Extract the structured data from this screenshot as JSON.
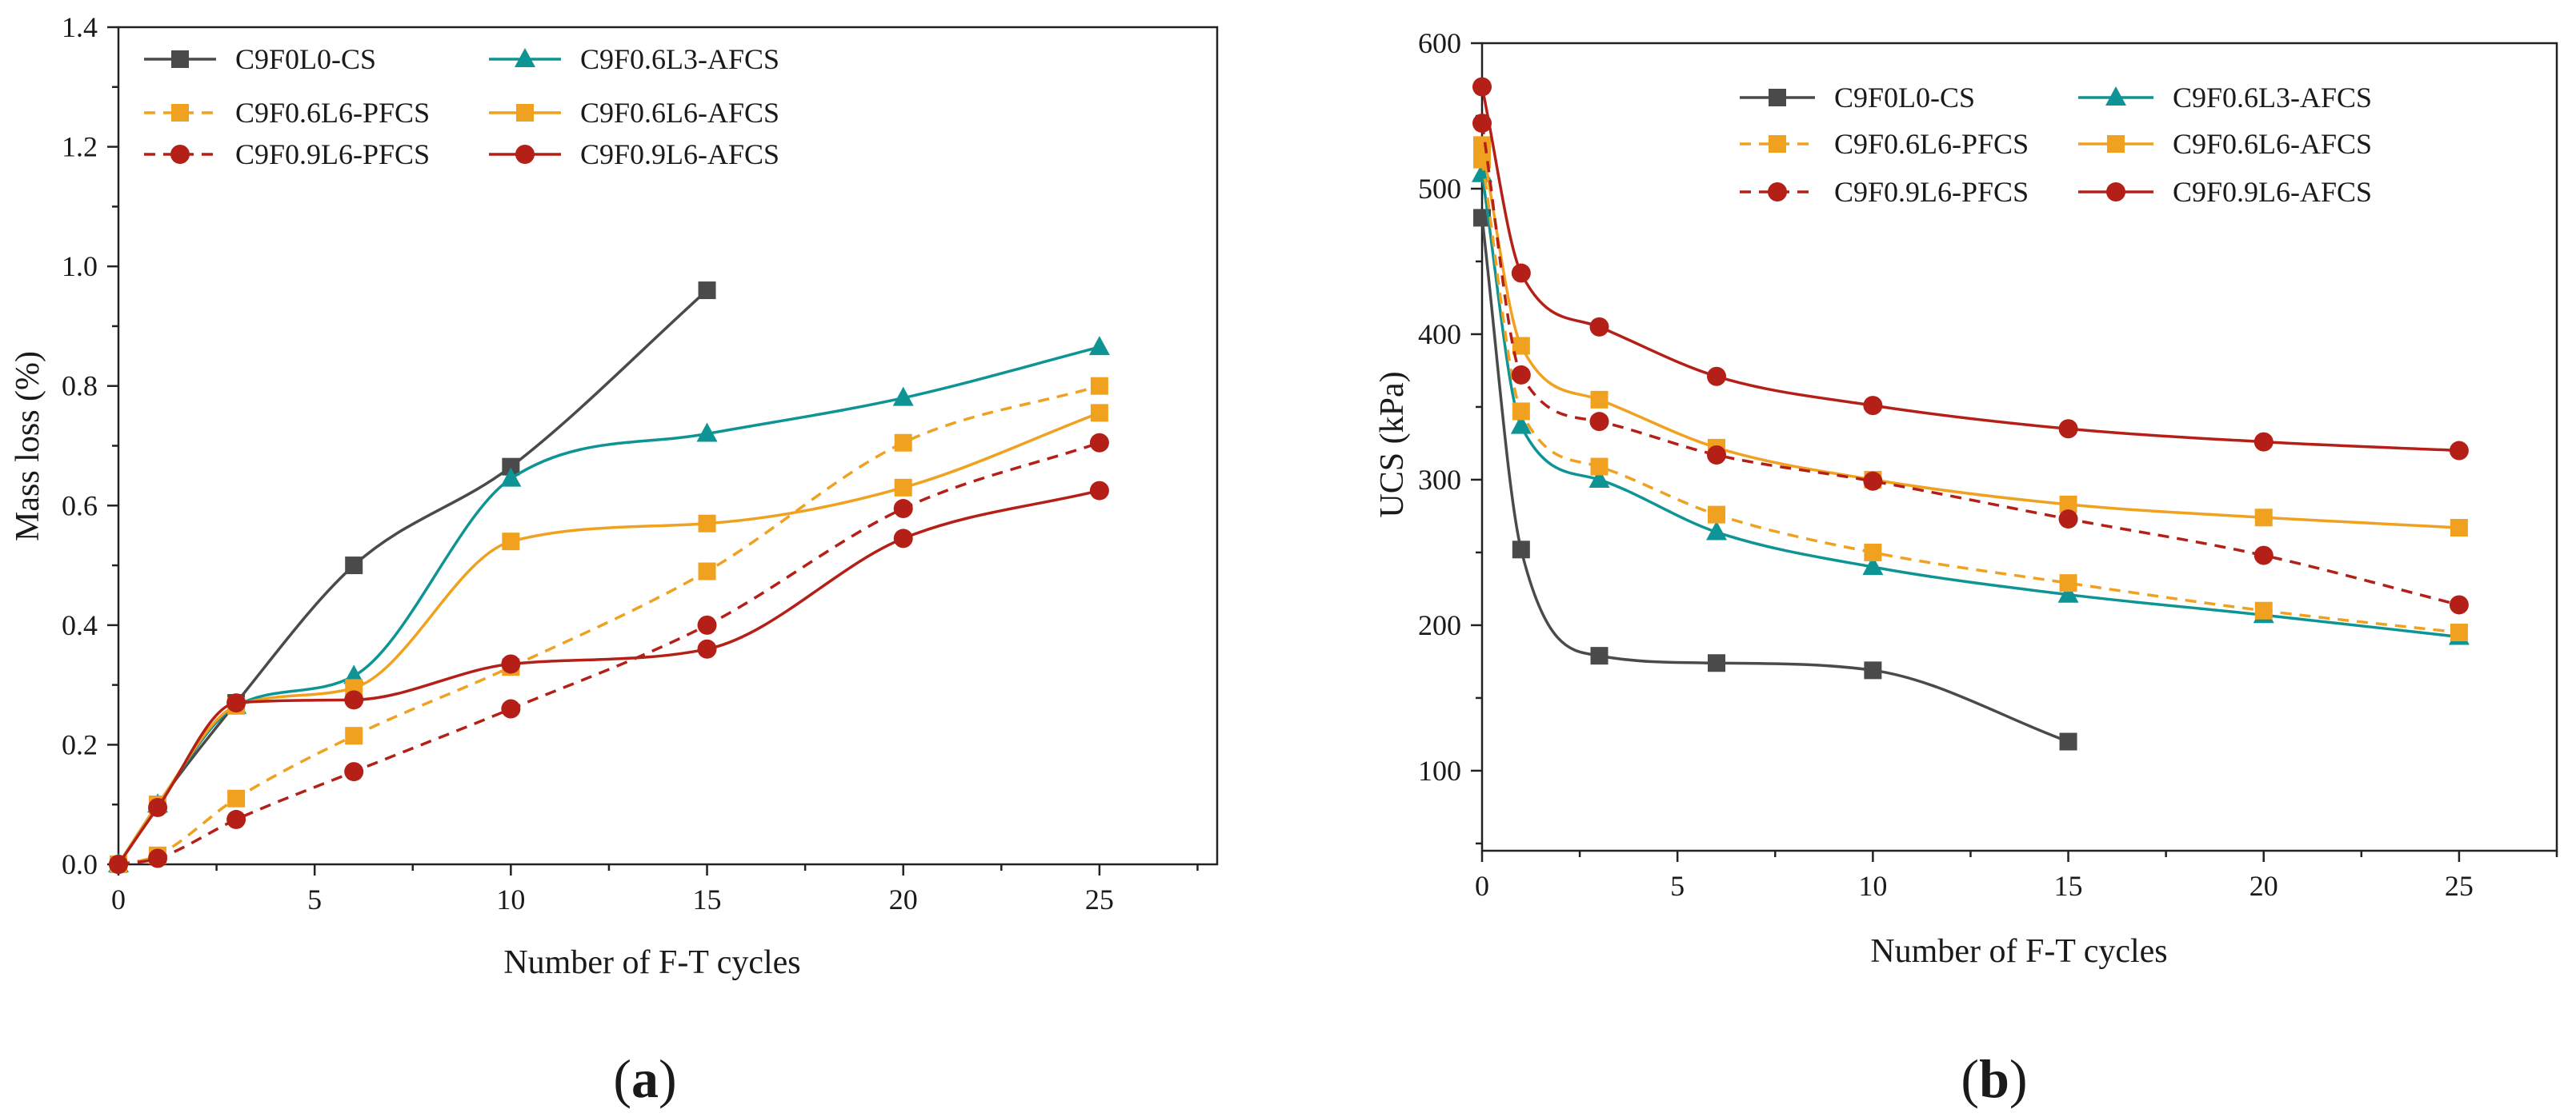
{
  "chart_data": [
    {
      "id": "a",
      "type": "line",
      "panel_label": "a",
      "title": "",
      "xlabel": "Number of F-T cycles",
      "ylabel": "Mass loss (%)",
      "xlim": [
        0,
        28
      ],
      "ylim": [
        0,
        1.4
      ],
      "xticks": [
        0,
        5,
        10,
        15,
        20,
        25
      ],
      "yticks": [
        0.0,
        0.2,
        0.4,
        0.6,
        0.8,
        1.0,
        1.2,
        1.4
      ],
      "ytick_labels": [
        "0.0",
        "0.2",
        "0.4",
        "0.6",
        "0.8",
        "1.0",
        "1.2",
        "1.4"
      ],
      "grid": false,
      "legend_position": "top-left",
      "series": [
        {
          "name": "C9F0L0-CS",
          "color": "#4a4a4a",
          "dash": "solid",
          "marker": "square",
          "x": [
            0,
            1,
            3,
            6,
            10,
            15
          ],
          "y": [
            0,
            0.1,
            0.27,
            0.5,
            0.665,
            0.96
          ]
        },
        {
          "name": "C9F0.6L3-AFCS",
          "color": "#0e9494",
          "dash": "solid",
          "marker": "triangle",
          "x": [
            0,
            1,
            3,
            6,
            10,
            15,
            20,
            25
          ],
          "y": [
            0,
            0.1,
            0.265,
            0.315,
            0.645,
            0.72,
            0.78,
            0.865
          ]
        },
        {
          "name": "C9F0.6L6-PFCS",
          "color": "#f0a11f",
          "dash": "dashed",
          "marker": "square",
          "x": [
            0,
            1,
            3,
            6,
            10,
            15,
            20,
            25
          ],
          "y": [
            0,
            0.015,
            0.11,
            0.215,
            0.33,
            0.49,
            0.705,
            0.8
          ]
        },
        {
          "name": "C9F0.6L6-AFCS",
          "color": "#f0a11f",
          "dash": "solid",
          "marker": "square",
          "x": [
            0,
            1,
            3,
            6,
            10,
            15,
            20,
            25
          ],
          "y": [
            0,
            0.1,
            0.265,
            0.295,
            0.54,
            0.57,
            0.63,
            0.755
          ]
        },
        {
          "name": "C9F0.9L6-PFCS",
          "color": "#b42018",
          "dash": "dashed",
          "marker": "circle",
          "x": [
            0,
            1,
            3,
            6,
            10,
            15,
            20,
            25
          ],
          "y": [
            0,
            0.01,
            0.075,
            0.155,
            0.26,
            0.4,
            0.595,
            0.705
          ]
        },
        {
          "name": "C9F0.9L6-AFCS",
          "color": "#b42018",
          "dash": "solid",
          "marker": "circle",
          "x": [
            0,
            1,
            3,
            6,
            10,
            15,
            20,
            25
          ],
          "y": [
            0,
            0.095,
            0.27,
            0.275,
            0.335,
            0.36,
            0.545,
            0.625
          ]
        }
      ]
    },
    {
      "id": "b",
      "type": "line",
      "panel_label": "b",
      "title": "",
      "xlabel": "Number of F-T cycles",
      "ylabel": "UCS (kPa)",
      "xlim": [
        0,
        27.5
      ],
      "ylim": [
        45,
        600
      ],
      "xticks": [
        0,
        5,
        10,
        15,
        20,
        25
      ],
      "yticks": [
        100,
        200,
        300,
        400,
        500,
        600
      ],
      "ytick_labels": [
        "100",
        "200",
        "300",
        "400",
        "500",
        "600"
      ],
      "grid": false,
      "legend_position": "top-center",
      "series": [
        {
          "name": "C9F0L0-CS",
          "color": "#4a4a4a",
          "dash": "solid",
          "marker": "square",
          "x": [
            0,
            1,
            3,
            6,
            10,
            15
          ],
          "y": [
            480,
            252,
            179,
            174,
            169,
            120
          ]
        },
        {
          "name": "C9F0.6L3-AFCS",
          "color": "#0e9494",
          "dash": "solid",
          "marker": "triangle",
          "x": [
            0,
            1,
            3,
            6,
            10,
            15,
            20,
            25
          ],
          "y": [
            510,
            337,
            300,
            264,
            240,
            221,
            207,
            192
          ]
        },
        {
          "name": "C9F0.6L6-PFCS",
          "color": "#f0a11f",
          "dash": "dashed",
          "marker": "square",
          "x": [
            0,
            1,
            3,
            6,
            10,
            15,
            20,
            25
          ],
          "y": [
            520,
            347,
            309,
            276,
            250,
            229,
            210,
            195
          ]
        },
        {
          "name": "C9F0.6L6-AFCS",
          "color": "#f0a11f",
          "dash": "solid",
          "marker": "square",
          "x": [
            0,
            1,
            3,
            6,
            10,
            15,
            20,
            25
          ],
          "y": [
            530,
            392,
            355,
            322,
            300,
            283,
            274,
            267
          ]
        },
        {
          "name": "C9F0.9L6-PFCS",
          "color": "#b42018",
          "dash": "dashed",
          "marker": "circle",
          "x": [
            0,
            1,
            3,
            6,
            10,
            15,
            20,
            25
          ],
          "y": [
            545,
            372,
            340,
            317,
            299,
            273,
            248,
            214
          ]
        },
        {
          "name": "C9F0.9L6-AFCS",
          "color": "#b42018",
          "dash": "solid",
          "marker": "circle",
          "x": [
            0,
            1,
            3,
            6,
            10,
            15,
            20,
            25
          ],
          "y": [
            570,
            442,
            405,
            371,
            351,
            335,
            326,
            320
          ]
        }
      ]
    }
  ]
}
